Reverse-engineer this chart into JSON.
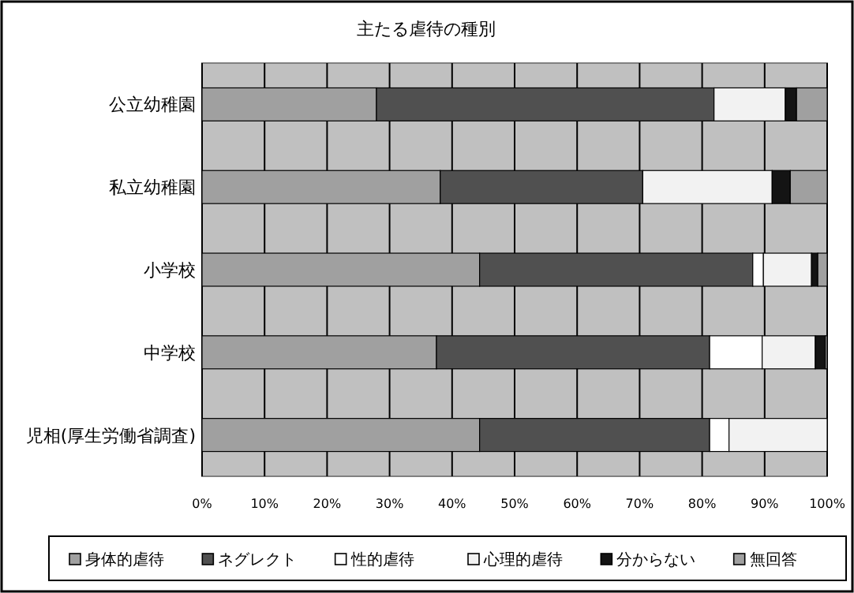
{
  "chart_data": {
    "type": "bar",
    "orientation": "horizontal",
    "stacked": true,
    "title": "主たる虐待の種別",
    "categories": [
      "公立幼稚園",
      "私立幼稚園",
      "小学校",
      "中学校",
      "児相(厚生労働省調査)"
    ],
    "series": [
      {
        "name": "身体的虐待",
        "color": "#a0a0a0",
        "values": [
          27.9,
          38.1,
          44.4,
          37.5,
          44.4
        ]
      },
      {
        "name": "ネグレクト",
        "color": "#505050",
        "values": [
          54.0,
          32.4,
          43.7,
          43.7,
          36.8
        ]
      },
      {
        "name": "性的虐待",
        "color": "#ffffff",
        "values": [
          0,
          0,
          1.7,
          8.4,
          3.1
        ]
      },
      {
        "name": "心理的虐待",
        "color": "#f2f2f2",
        "values": [
          11.4,
          20.7,
          7.7,
          8.5,
          15.7
        ]
      },
      {
        "name": "分からない",
        "color": "#141414",
        "values": [
          1.8,
          2.9,
          1.0,
          1.6,
          0
        ]
      },
      {
        "name": "無回答",
        "color": "#a0a0a0",
        "values": [
          4.9,
          5.9,
          1.5,
          0.3,
          0
        ]
      }
    ],
    "xlim": [
      0,
      100
    ],
    "xticks": [
      {
        "value": 0,
        "label": "0%"
      },
      {
        "value": 10,
        "label": "10%"
      },
      {
        "value": 20,
        "label": "20%"
      },
      {
        "value": 30,
        "label": "30%"
      },
      {
        "value": 40,
        "label": "40%"
      },
      {
        "value": 50,
        "label": "50%"
      },
      {
        "value": 60,
        "label": "60%"
      },
      {
        "value": 70,
        "label": "70%"
      },
      {
        "value": 80,
        "label": "80%"
      },
      {
        "value": 90,
        "label": "90%"
      },
      {
        "value": 100,
        "label": "100%"
      }
    ],
    "grid": "x",
    "legend": "bottom"
  }
}
